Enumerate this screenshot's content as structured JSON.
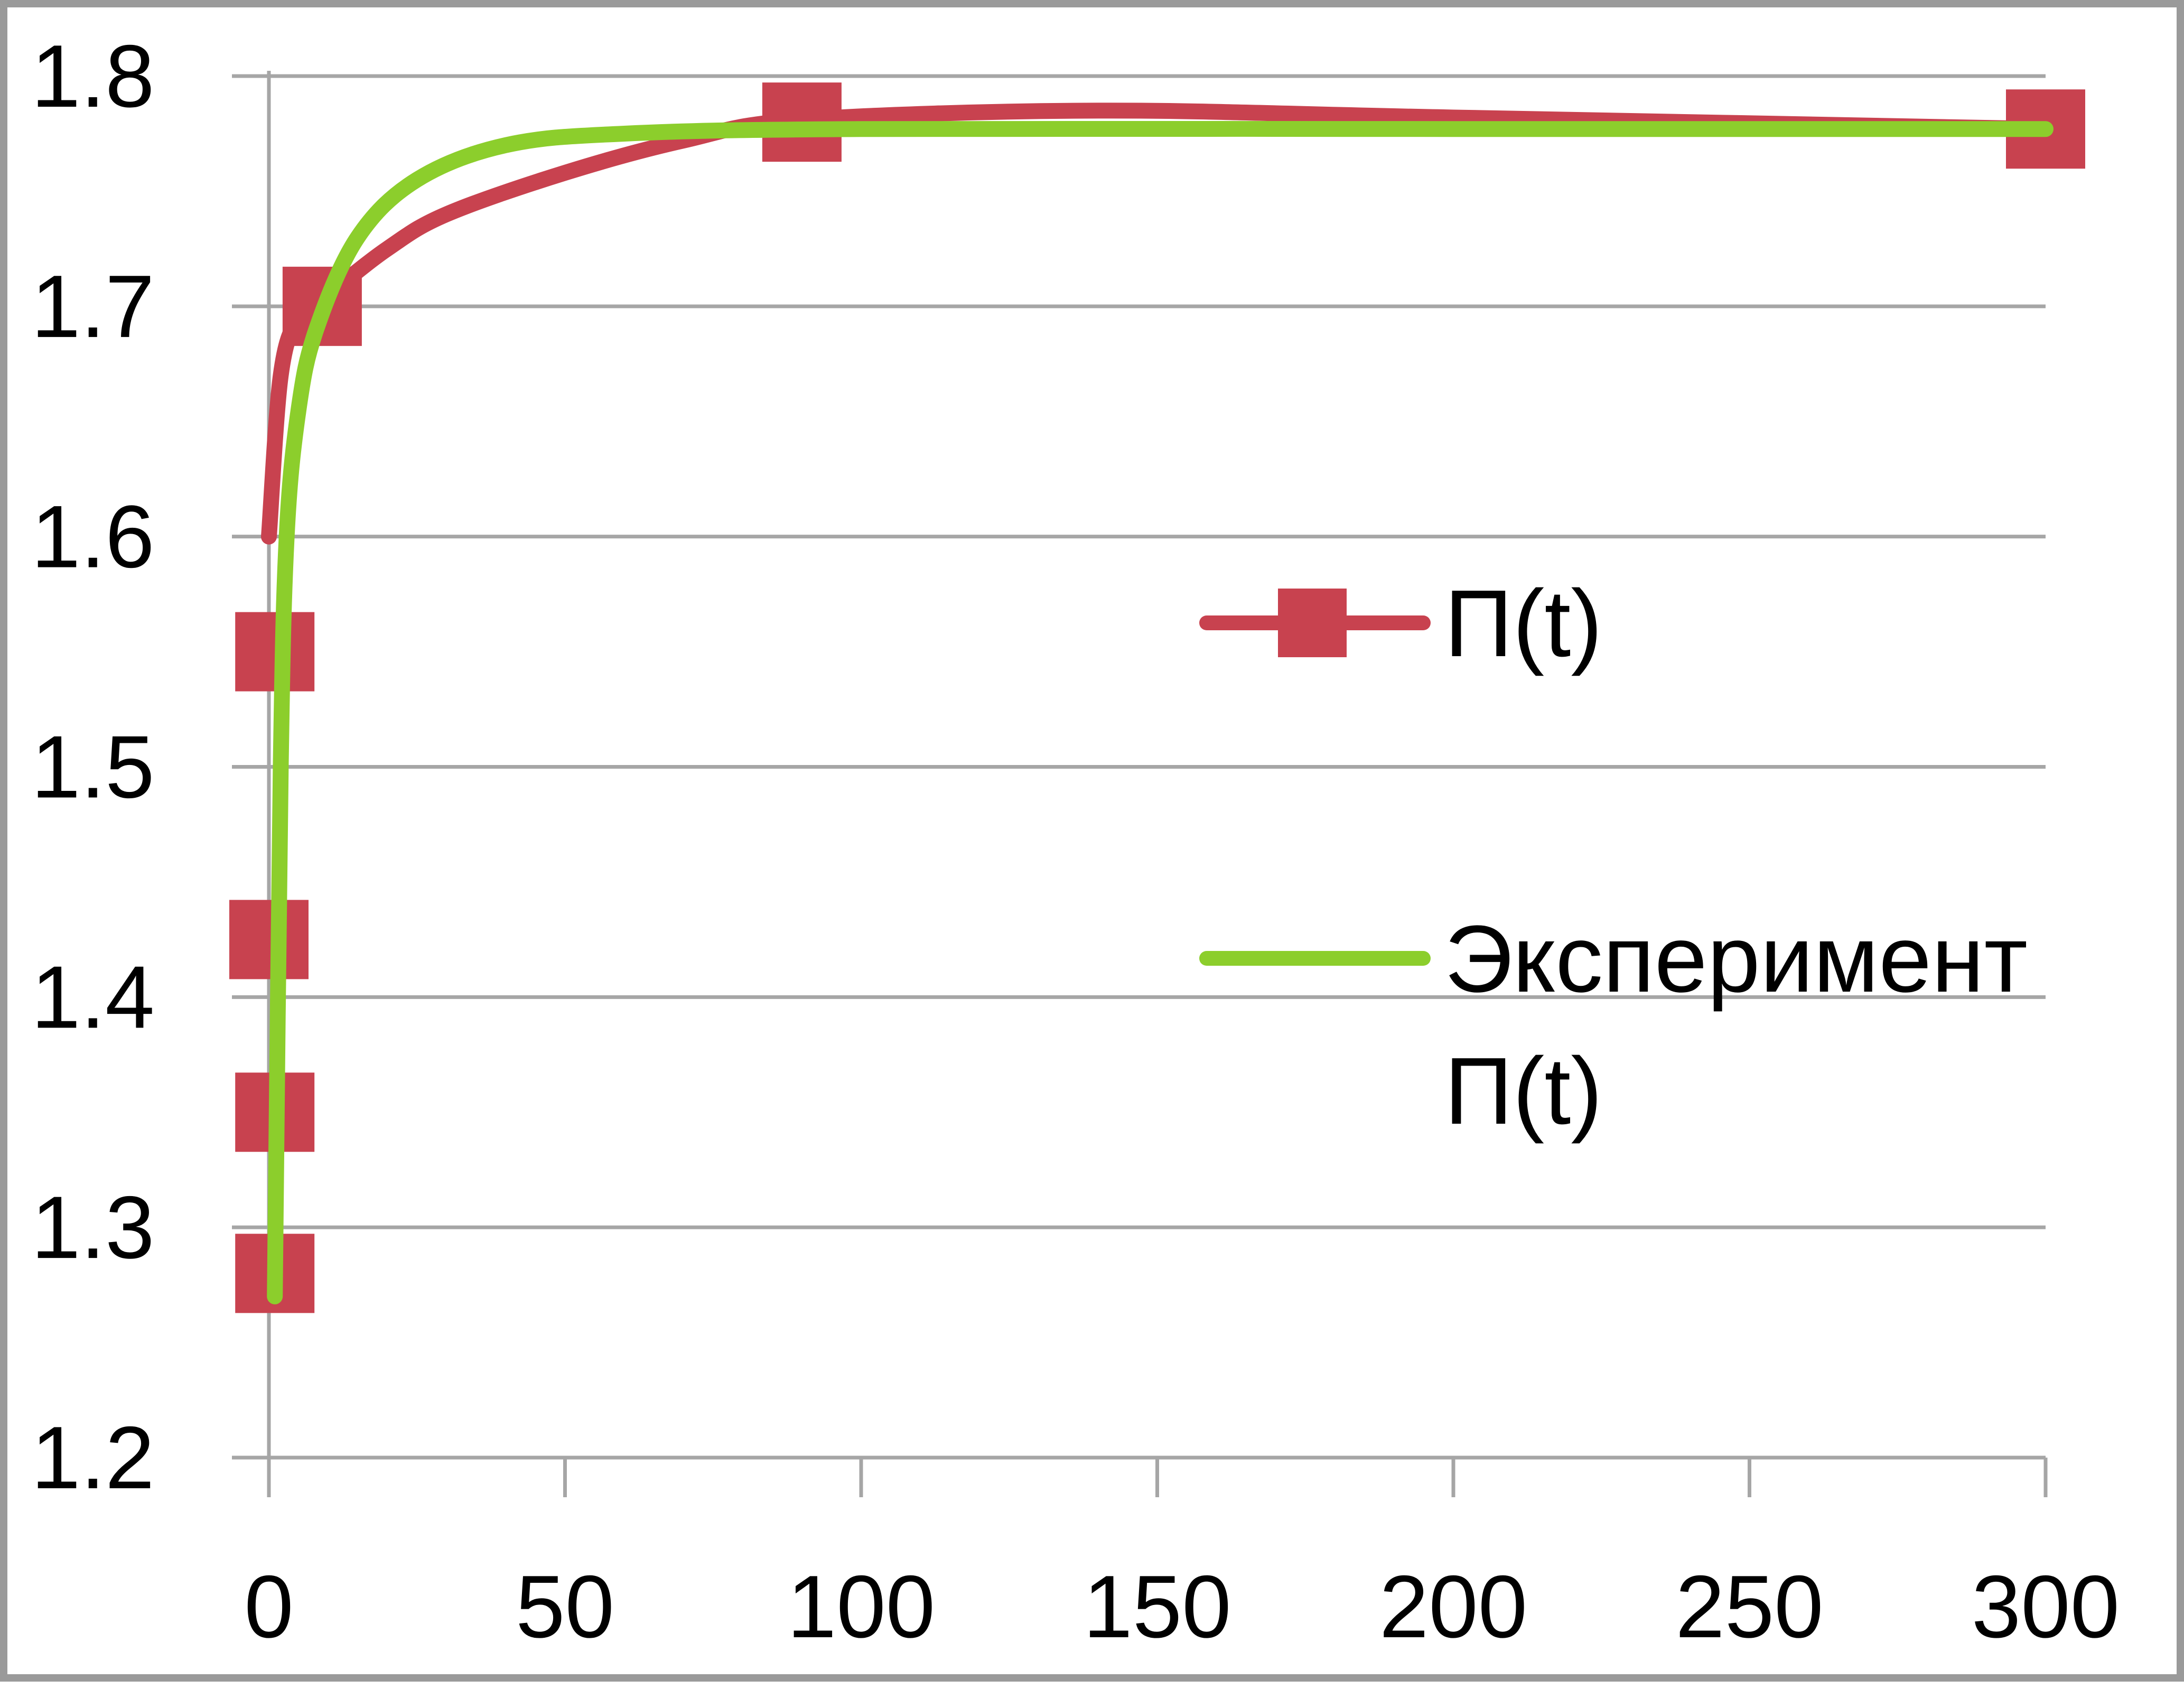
{
  "chart_data": {
    "type": "scatter",
    "title": "",
    "xlabel": "",
    "ylabel": "",
    "xlim": [
      0,
      300
    ],
    "ylim": [
      1.2,
      1.8
    ],
    "x_ticks": [
      "0",
      "50",
      "100",
      "150",
      "200",
      "250",
      "300"
    ],
    "y_ticks": [
      "1.2",
      "1.3",
      "1.4",
      "1.5",
      "1.6",
      "1.7",
      "1.8"
    ],
    "grid": "horizontal",
    "legend_position": "right",
    "series": [
      {
        "name": "П(t)",
        "style": "line-with-square-markers",
        "color": "#c8424f",
        "marker_points": [
          {
            "x": 1,
            "y": 1.28
          },
          {
            "x": 1,
            "y": 1.35
          },
          {
            "x": 0,
            "y": 1.425
          },
          {
            "x": 1,
            "y": 1.55
          },
          {
            "x": 9,
            "y": 1.7
          },
          {
            "x": 90,
            "y": 1.78
          },
          {
            "x": 300,
            "y": 1.777
          }
        ],
        "curve_points": [
          {
            "x": 0,
            "y": 1.6
          },
          {
            "x": 2,
            "y": 1.67
          },
          {
            "x": 5,
            "y": 1.695
          },
          {
            "x": 10,
            "y": 1.705
          },
          {
            "x": 20,
            "y": 1.725
          },
          {
            "x": 30,
            "y": 1.74
          },
          {
            "x": 50,
            "y": 1.758
          },
          {
            "x": 70,
            "y": 1.772
          },
          {
            "x": 90,
            "y": 1.781
          },
          {
            "x": 140,
            "y": 1.785
          },
          {
            "x": 200,
            "y": 1.782
          },
          {
            "x": 300,
            "y": 1.777
          }
        ]
      },
      {
        "name": "Эксперимент П(t)",
        "style": "line",
        "color": "#8cce2c",
        "curve_points": [
          {
            "x": 1,
            "y": 1.27
          },
          {
            "x": 2,
            "y": 1.5
          },
          {
            "x": 3,
            "y": 1.6
          },
          {
            "x": 5,
            "y": 1.655
          },
          {
            "x": 8,
            "y": 1.69
          },
          {
            "x": 15,
            "y": 1.73
          },
          {
            "x": 25,
            "y": 1.755
          },
          {
            "x": 40,
            "y": 1.77
          },
          {
            "x": 60,
            "y": 1.775
          },
          {
            "x": 100,
            "y": 1.777
          },
          {
            "x": 200,
            "y": 1.777
          },
          {
            "x": 300,
            "y": 1.777
          }
        ]
      }
    ]
  },
  "legend": {
    "series1_label": "П(t)",
    "series2_label_line1": "Эксперимент",
    "series2_label_line2": "П(t)"
  },
  "colors": {
    "grid": "#a6a6a6",
    "axis": "#a6a6a6",
    "frame": "#9a9a9a"
  }
}
